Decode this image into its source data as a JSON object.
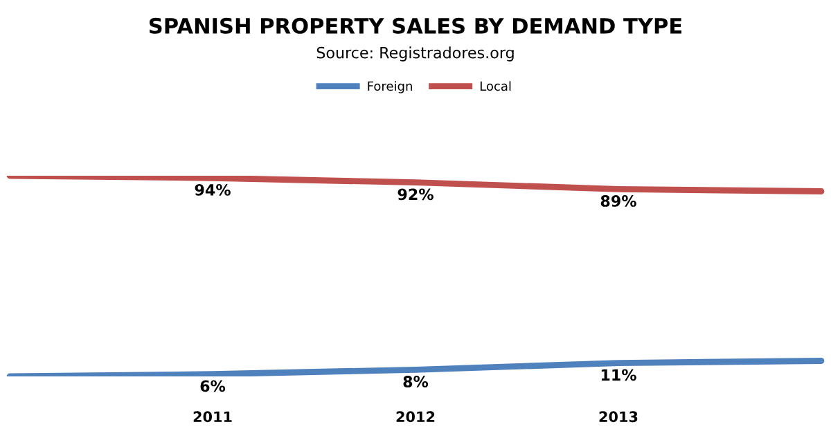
{
  "chart_data": {
    "type": "line",
    "title": "SPANISH PROPERTY SALES BY DEMAND TYPE",
    "subtitle": "Source: Registradores.org",
    "categories": [
      null,
      "2011",
      "2012",
      "2013",
      null
    ],
    "series": [
      {
        "name": "Foreign",
        "color": "#4f81bd",
        "values": [
          5,
          6,
          8,
          11,
          12
        ],
        "value_labels": [
          null,
          "6%",
          "8%",
          "11%",
          null
        ]
      },
      {
        "name": "Local",
        "color": "#c0504d",
        "values": [
          95,
          94,
          92,
          89,
          88
        ],
        "value_labels": [
          null,
          "94%",
          "92%",
          "89%",
          null
        ]
      }
    ],
    "legend": "top",
    "grid": false,
    "marker": "none",
    "line_style": "solid"
  }
}
